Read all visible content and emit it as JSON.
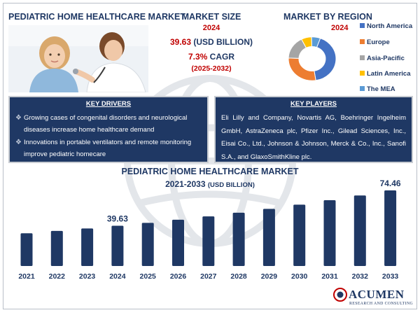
{
  "header": {
    "title": "PEDIATRIC HOME HEALTHCARE MARKET"
  },
  "market_size": {
    "heading": "MARKET SIZE",
    "year": "2024",
    "value": "39.63",
    "unit": "(USD BILLION)",
    "cagr_value": "7.3%",
    "cagr_label": "CAGR",
    "period": "(2025-2032)"
  },
  "region": {
    "heading": "MARKET BY REGION",
    "year": "2024",
    "legend": [
      {
        "label": "North America",
        "color": "#4472c4"
      },
      {
        "label": "Europe",
        "color": "#ed7d31"
      },
      {
        "label": "Asia-Pacific",
        "color": "#a5a5a5"
      },
      {
        "label": "Latin America",
        "color": "#ffc000"
      },
      {
        "label": "The MEA",
        "color": "#5b9bd5"
      }
    ]
  },
  "key_drivers": {
    "heading": "KEY DRIVERS",
    "items": [
      "Growing cases of congenital disorders and neurological diseases increase home healthcare demand",
      "Innovations in portable ventilators and remote monitoring improve pediatric homecare"
    ]
  },
  "key_players": {
    "heading": "KEY PLAYERS",
    "text": "Eli Lilly and Company, Novartis AG, Boehringer Ingelheim GmbH, AstraZeneca plc, Pfizer Inc., Gilead Sciences, Inc., Eisai Co., Ltd., Johnson & Johnson, Merck & Co., Inc., Sanofi S.A., and GlaxoSmithKline plc."
  },
  "logo": {
    "name": "ACUMEN",
    "tagline": "RESEARCH AND CONSULTING"
  },
  "colors": {
    "navy": "#1f3864",
    "red": "#c00000",
    "bar": "#1f3864"
  },
  "chart_data": [
    {
      "type": "bar",
      "title": "PEDIATRIC HOME HEALTHCARE MARKET",
      "subtitle_main": "2021-2033",
      "subtitle_unit": "(USD BILLION)",
      "categories": [
        "2021",
        "2022",
        "2023",
        "2024",
        "2025",
        "2026",
        "2027",
        "2028",
        "2029",
        "2030",
        "2031",
        "2032",
        "2033"
      ],
      "values": [
        32.2,
        34.6,
        37.0,
        39.63,
        42.5,
        45.6,
        48.9,
        52.5,
        56.3,
        60.4,
        64.8,
        69.5,
        74.46
      ],
      "data_labels": [
        {
          "category": "2024",
          "text": "39.63"
        },
        {
          "category": "2033",
          "text": "74.46"
        }
      ],
      "ylim": [
        0,
        80
      ],
      "grid": false
    },
    {
      "type": "pie",
      "title": "MARKET BY REGION",
      "categories": [
        "North America",
        "Europe",
        "Asia-Pacific",
        "Latin America",
        "The MEA"
      ],
      "values": [
        42,
        28,
        17,
        7,
        6
      ]
    }
  ]
}
